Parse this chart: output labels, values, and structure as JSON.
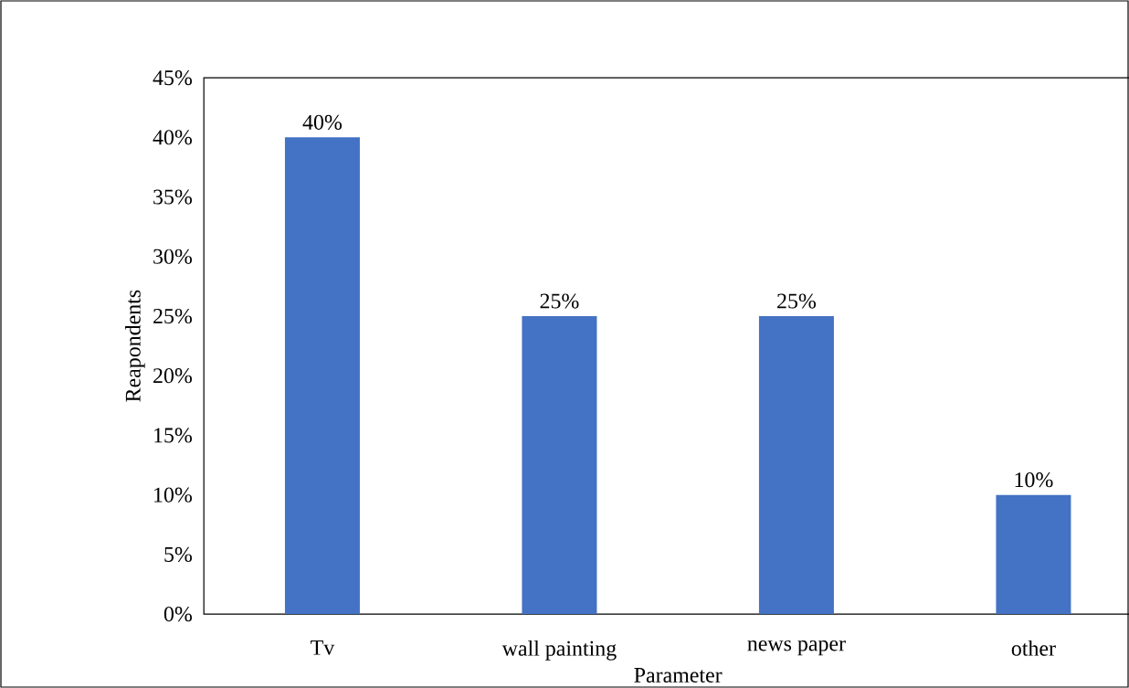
{
  "chart_data": {
    "type": "bar",
    "categories": [
      "Tv",
      "wall painting",
      "news paper",
      "other"
    ],
    "values": [
      40,
      25,
      25,
      10
    ],
    "value_labels": [
      "40%",
      "25%",
      "25%",
      "10%"
    ],
    "color": "#4472c4",
    "xlabel": "Parameter",
    "ylabel": "Reapondents",
    "ylim": [
      0,
      45
    ],
    "yticks": [
      {
        "value": 0,
        "label": "0%"
      },
      {
        "value": 5,
        "label": "5%"
      },
      {
        "value": 10,
        "label": "10%"
      },
      {
        "value": 15,
        "label": "15%"
      },
      {
        "value": 20,
        "label": "20%"
      },
      {
        "value": 25,
        "label": "25%"
      },
      {
        "value": 30,
        "label": "30%"
      },
      {
        "value": 35,
        "label": "35%"
      },
      {
        "value": 40,
        "label": "40%"
      },
      {
        "value": 45,
        "label": "45%"
      }
    ]
  }
}
